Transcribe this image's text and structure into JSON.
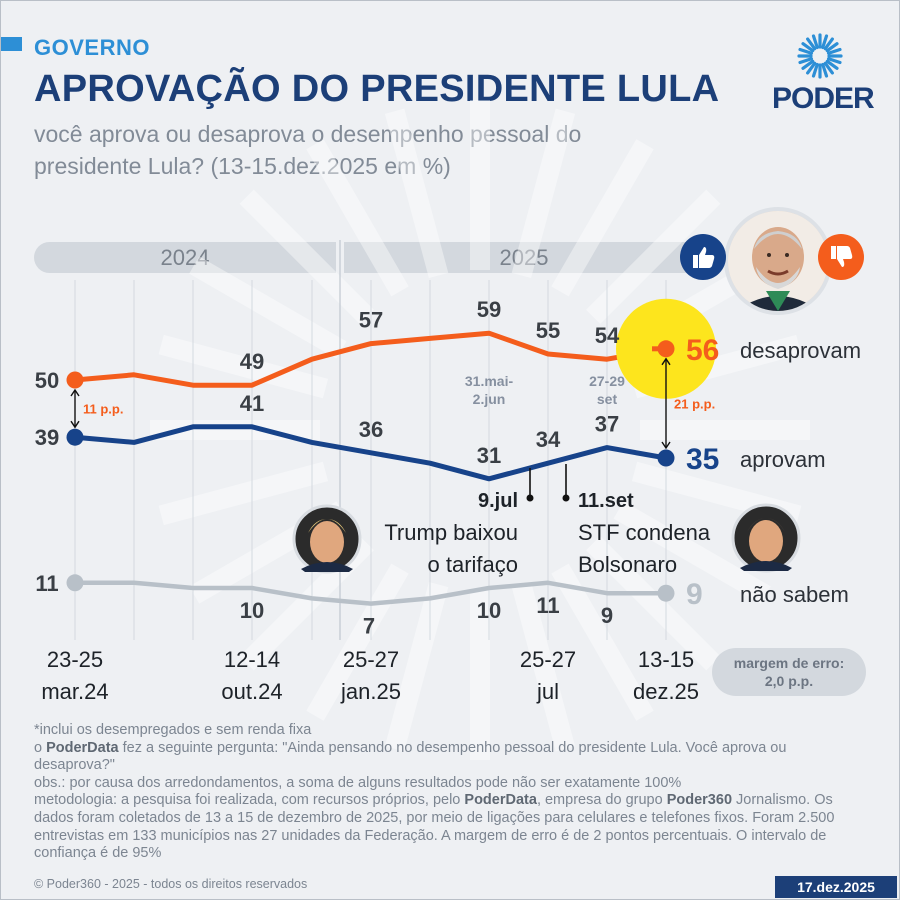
{
  "header": {
    "section": "GOVERNO",
    "title": "APROVAÇÃO DO PRESIDENTE LULA",
    "subtitle": "você aprova ou desaprova o desempenho pessoal do presidente Lula? (13-15.dez.2025 em %)",
    "logo_text": "PODER"
  },
  "years": [
    "2024",
    "2025"
  ],
  "colors": {
    "disapprove": "#f45d1c",
    "approve": "#17438a",
    "dont_know": "#b8c0c8",
    "highlight": "#fde51d",
    "title": "#1c3f78",
    "accent": "#2d8fd6"
  },
  "icons": [
    "thumbs-up-icon",
    "thumbs-down-icon",
    "poder-logo-icon"
  ],
  "chart_data": {
    "type": "line",
    "x_ticks": [
      {
        "index": 0,
        "lines": [
          "23-25",
          "mar.24"
        ]
      },
      {
        "index": 3,
        "lines": [
          "12-14",
          "out.24"
        ]
      },
      {
        "index": 5,
        "lines": [
          "25-27",
          "jan.25"
        ]
      },
      {
        "index": 8,
        "lines": [
          "25-27",
          "jul"
        ]
      },
      {
        "index": 10,
        "lines": [
          "13-15",
          "dez.25"
        ]
      }
    ],
    "vertical_date_labels": [
      {
        "index": 7,
        "lines": [
          "31.mai-",
          "2.jun"
        ]
      },
      {
        "index": 9,
        "lines": [
          "27-29",
          "set"
        ]
      }
    ],
    "n_points": 11,
    "series": [
      {
        "name": "desaprovam",
        "key": "disapprove",
        "values": [
          50,
          51,
          49,
          49,
          54,
          57,
          58,
          59,
          55,
          54,
          56
        ]
      },
      {
        "name": "aprovam",
        "key": "approve",
        "values": [
          39,
          38,
          41,
          41,
          38,
          36,
          34,
          31,
          34,
          37,
          35
        ]
      },
      {
        "name": "não sabem",
        "key": "dont_know",
        "values": [
          11,
          11,
          10,
          10,
          8,
          7,
          8,
          10,
          11,
          9,
          9
        ]
      }
    ],
    "point_labels": {
      "disapprove": [
        {
          "i": 0,
          "text": "50"
        },
        {
          "i": 3,
          "text": "49"
        },
        {
          "i": 5,
          "text": "57"
        },
        {
          "i": 7,
          "text": "59"
        },
        {
          "i": 8,
          "text": "55"
        },
        {
          "i": 9,
          "text": "54"
        },
        {
          "i": 10,
          "text": "56"
        }
      ],
      "approve": [
        {
          "i": 0,
          "text": "39"
        },
        {
          "i": 3,
          "text": "41"
        },
        {
          "i": 5,
          "text": "36"
        },
        {
          "i": 7,
          "text": "31"
        },
        {
          "i": 8,
          "text": "34"
        },
        {
          "i": 9,
          "text": "37"
        },
        {
          "i": 10,
          "text": "35"
        }
      ],
      "dont_know": [
        {
          "i": 0,
          "text": "11"
        },
        {
          "i": 3,
          "text": "10"
        },
        {
          "i": 5,
          "text": "7"
        },
        {
          "i": 7,
          "text": "10"
        },
        {
          "i": 8,
          "text": "11"
        },
        {
          "i": 9,
          "text": "9"
        },
        {
          "i": 10,
          "text": "9"
        }
      ]
    },
    "gaps": [
      {
        "at": "first",
        "text": "11 p.p."
      },
      {
        "at": "last",
        "text": "21 p.p."
      }
    ],
    "annotations": [
      {
        "label": "9.jul",
        "event_lines": [
          "Trump baixou",
          "o tarifaço"
        ]
      },
      {
        "label": "11.set",
        "event_lines": [
          "STF condena",
          "Bolsonaro"
        ]
      }
    ],
    "margin_of_error": [
      "margem de erro:",
      "2,0 p.p."
    ]
  },
  "notes": {
    "line1": "*inclui os desempregados e sem renda fixa",
    "line2_prefix": "o ",
    "line2_bold": "PoderData",
    "line2_rest": " fez a seguinte pergunta: \"Ainda pensando no desempenho pessoal do presidente Lula. Você aprova ou desaprova?\"",
    "line3": "obs.: por causa dos arredondamentos, a soma de alguns resultados pode não ser exatamente 100%",
    "line4_prefix": "metodologia: a pesquisa foi realizada, com recursos próprios, pelo ",
    "line4_bold1": "PoderData",
    "line4_mid": ", empresa do grupo ",
    "line4_bold2": "Poder360",
    "line4_rest": " Jornalismo. Os dados foram coletados de 13 a 15 de dezembro de 2025, por meio de ligações para celulares e telefones fixos. Foram 2.500 entrevistas em 133 municípios nas 27 unidades da Federação. A margem de erro é de 2 pontos percentuais. O intervalo de confiança é de 95%"
  },
  "footer": {
    "copyright": "© Poder360 - 2025 - todos os direitos reservados",
    "date": "17.dez.2025"
  }
}
